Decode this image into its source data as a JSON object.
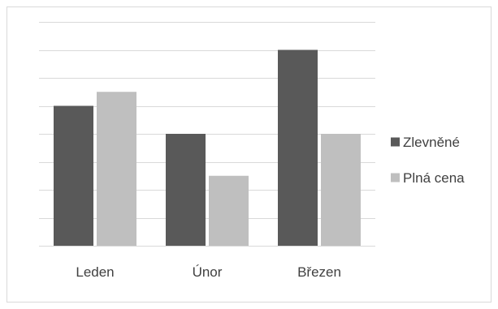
{
  "chart_data": {
    "type": "bar",
    "title": "",
    "xlabel": "",
    "ylabel": "",
    "categories": [
      "Leden",
      "Únor",
      "Březen"
    ],
    "series": [
      {
        "name": "Zlevněné",
        "values": [
          5,
          4,
          7
        ],
        "color": "#595959"
      },
      {
        "name": "Plná cena",
        "values": [
          5.5,
          2.5,
          4
        ],
        "color": "#bfbfbf"
      }
    ],
    "ylim": [
      0,
      8
    ],
    "y_tick_step": 1,
    "y_tick_labels_shown": false,
    "grid": true,
    "legend_position": "right"
  }
}
